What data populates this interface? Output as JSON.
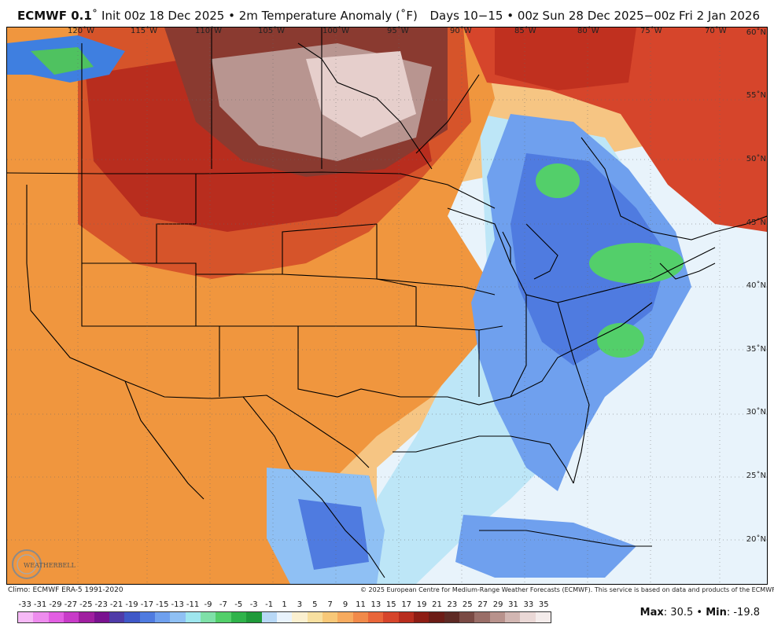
{
  "header": {
    "model": "ECMWF 0.1",
    "init": "˚ Init 00z 18 Dec 2025 • 2m Temperature Anomaly (˚F)",
    "valid": "Days 10−15 • 00z Sun 28 Dec 2025−00z Fri 2 Jan 2026"
  },
  "map": {
    "lon_labels": [
      "120˚W",
      "115˚W",
      "110˚W",
      "105˚W",
      "100˚W",
      "95˚W",
      "90˚W",
      "85˚W",
      "80˚W",
      "75˚W",
      "70˚W"
    ],
    "lat_labels": [
      "60˚N",
      "55˚N",
      "50˚N",
      "45˚N",
      "40˚N",
      "35˚N",
      "30˚N",
      "25˚N",
      "20˚N"
    ]
  },
  "footer": {
    "climo": "Climo: ECMWF ERA-5 1991-2020",
    "copyright": "© 2025 European Centre for Medium-Range Weather Forecasts (ECMWF). This service is based on data and products of the ECMWF.",
    "max_label": "Max",
    "max_value": "30.5",
    "min_label": "Min",
    "min_value": "-19.8",
    "logo_text": "WEATHERBELL"
  },
  "colorbar": {
    "ticks": [
      "-33",
      "-31",
      "-29",
      "-27",
      "-25",
      "-23",
      "-21",
      "-19",
      "-17",
      "-15",
      "-13",
      "-11",
      "-9",
      "-7",
      "-5",
      "-3",
      "-1",
      "1",
      "3",
      "5",
      "7",
      "9",
      "11",
      "13",
      "15",
      "17",
      "19",
      "21",
      "23",
      "25",
      "27",
      "29",
      "31",
      "33",
      "35"
    ],
    "colors": [
      "#f6b9f6",
      "#ee8cee",
      "#e25fe2",
      "#c83bc8",
      "#a01fa0",
      "#7a1290",
      "#4f3ba8",
      "#3f58c8",
      "#4f7be0",
      "#6fa0ee",
      "#8fc0f4",
      "#9ee6ee",
      "#7fe0a8",
      "#53cf6a",
      "#2fb34a",
      "#1f9a3a",
      "#b8d8f6",
      "#e9f3fc",
      "#fbf0d0",
      "#f8e0a0",
      "#f8c878",
      "#f7ab5f",
      "#f18a4a",
      "#e9663a",
      "#d6452b",
      "#b82d1e",
      "#8e1d14",
      "#6c1c16",
      "#5e2a24",
      "#7a4a44",
      "#9a6e68",
      "#b8928c",
      "#d2b6b2",
      "#ead8d6",
      "#f4eceb"
    ]
  }
}
